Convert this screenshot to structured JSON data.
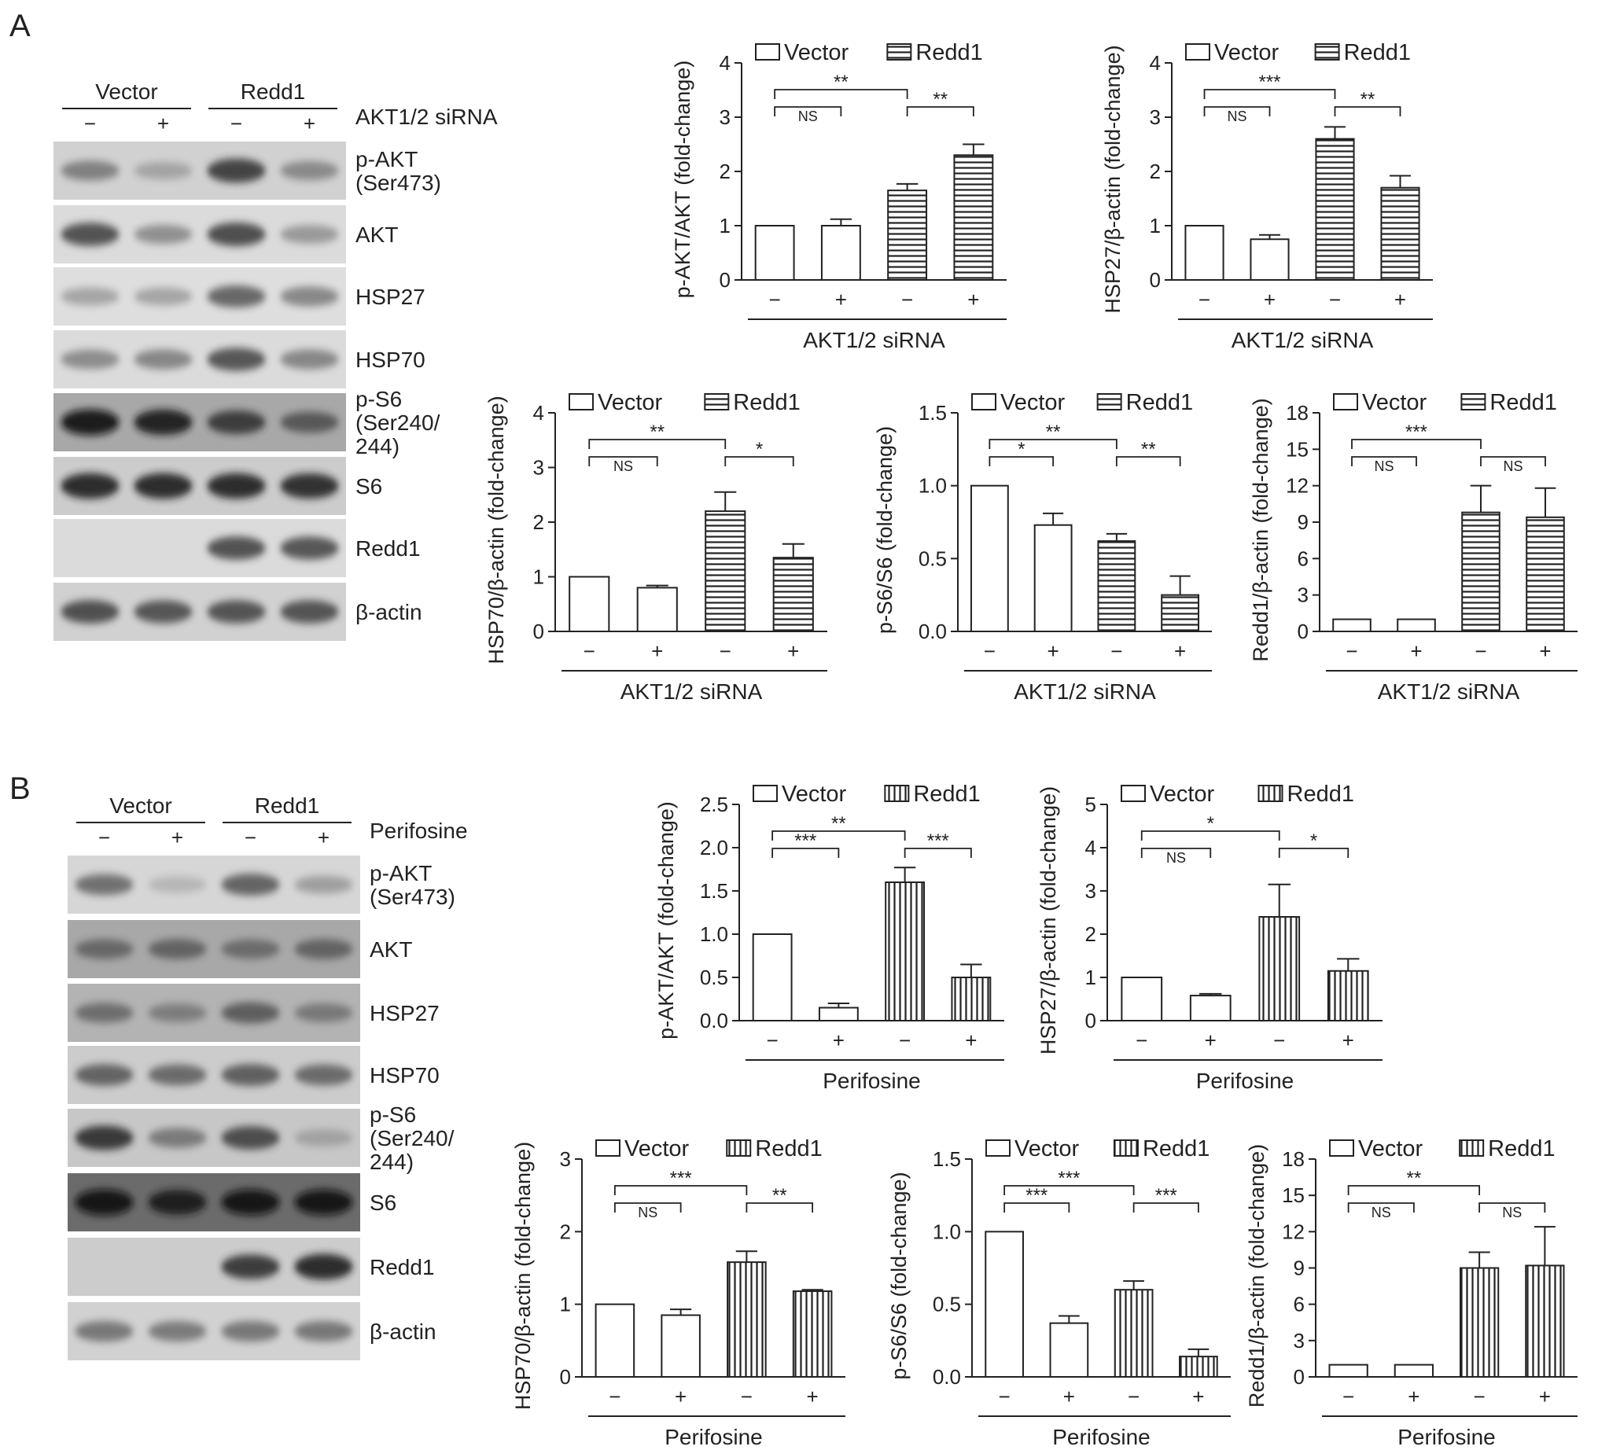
{
  "panels": [
    {
      "letter": "A",
      "blot": {
        "groups": [
          "Vector",
          "Redd1"
        ],
        "treatment": "AKT1/2 siRNA",
        "signs": [
          "−",
          "+",
          "−",
          "+"
        ],
        "rows": [
          {
            "label": [
              "p-AKT",
              "(Ser473)"
            ],
            "bg": 0.82,
            "bands": [
              0.45,
              0.25,
              0.78,
              0.4
            ]
          },
          {
            "label": [
              "AKT"
            ],
            "bg": 0.86,
            "bands": [
              0.72,
              0.4,
              0.75,
              0.35
            ]
          },
          {
            "label": [
              "HSP27"
            ],
            "bg": 0.87,
            "bands": [
              0.3,
              0.3,
              0.62,
              0.45
            ]
          },
          {
            "label": [
              "HSP70"
            ],
            "bg": 0.86,
            "bands": [
              0.42,
              0.45,
              0.7,
              0.45
            ]
          },
          {
            "label": [
              "p-S6",
              "(Ser240/",
              "244)"
            ],
            "bg": 0.66,
            "bands": [
              0.95,
              0.9,
              0.75,
              0.55
            ]
          },
          {
            "label": [
              "S6"
            ],
            "bg": 0.8,
            "bands": [
              0.92,
              0.92,
              0.9,
              0.88
            ]
          },
          {
            "label": [
              "Redd1"
            ],
            "bg": 0.86,
            "bands": [
              0.03,
              0.03,
              0.72,
              0.7
            ]
          },
          {
            "label": [
              "β-actin"
            ],
            "bg": 0.82,
            "bands": [
              0.72,
              0.68,
              0.7,
              0.7
            ]
          }
        ]
      },
      "charts": [
        {
          "ylabel": "p-AKT/AKT (fold-change)",
          "xlabel": "AKT1/2 siRNA",
          "ymax": 4,
          "ticks": [
            "0",
            "1",
            "2",
            "3",
            "4"
          ],
          "values": [
            1.0,
            1.0,
            1.65,
            2.3
          ],
          "errors": [
            0,
            0.12,
            0.12,
            0.2
          ],
          "legend": [
            "Vector",
            "Redd1"
          ],
          "signs": [
            "−",
            "+",
            "−",
            "+"
          ],
          "brackets": [
            {
              "from": 0,
              "to": 1,
              "label": "NS"
            },
            {
              "from": 0,
              "to": 2,
              "label": "**"
            },
            {
              "from": 2,
              "to": 3,
              "label": "**"
            }
          ]
        },
        {
          "ylabel": "HSP27/β-actin (fold-change)",
          "xlabel": "AKT1/2 siRNA",
          "ymax": 4,
          "ticks": [
            "0",
            "1",
            "2",
            "3",
            "4"
          ],
          "values": [
            1.0,
            0.75,
            2.6,
            1.7
          ],
          "errors": [
            0,
            0.08,
            0.22,
            0.22
          ],
          "legend": [
            "Vector",
            "Redd1"
          ],
          "signs": [
            "−",
            "+",
            "−",
            "+"
          ],
          "brackets": [
            {
              "from": 0,
              "to": 1,
              "label": "NS"
            },
            {
              "from": 0,
              "to": 2,
              "label": "***"
            },
            {
              "from": 2,
              "to": 3,
              "label": "**"
            }
          ]
        },
        {
          "ylabel": "HSP70/β-actin (fold-change)",
          "xlabel": "AKT1/2 siRNA",
          "ymax": 4,
          "ticks": [
            "0",
            "1",
            "2",
            "3",
            "4"
          ],
          "values": [
            1.0,
            0.8,
            2.2,
            1.35
          ],
          "errors": [
            0,
            0.04,
            0.35,
            0.25
          ],
          "legend": [
            "Vector",
            "Redd1"
          ],
          "signs": [
            "−",
            "+",
            "−",
            "+"
          ],
          "brackets": [
            {
              "from": 0,
              "to": 1,
              "label": "NS"
            },
            {
              "from": 0,
              "to": 2,
              "label": "**"
            },
            {
              "from": 2,
              "to": 3,
              "label": "*"
            }
          ]
        },
        {
          "ylabel": "p-S6/S6 (fold-change)",
          "xlabel": "AKT1/2 siRNA",
          "ymax": 1.5,
          "ticks": [
            "0.0",
            "0.5",
            "1.0",
            "1.5"
          ],
          "values": [
            1.0,
            0.73,
            0.62,
            0.25
          ],
          "errors": [
            0,
            0.08,
            0.05,
            0.13
          ],
          "legend": [
            "Vector",
            "Redd1"
          ],
          "signs": [
            "−",
            "+",
            "−",
            "+"
          ],
          "brackets": [
            {
              "from": 0,
              "to": 1,
              "label": "*"
            },
            {
              "from": 0,
              "to": 2,
              "label": "**"
            },
            {
              "from": 2,
              "to": 3,
              "label": "**"
            }
          ]
        },
        {
          "ylabel": "Redd1/β-actin (fold-change)",
          "xlabel": "AKT1/2 siRNA",
          "ymax": 18,
          "ticks": [
            "0",
            "3",
            "6",
            "9",
            "12",
            "15",
            "18"
          ],
          "values": [
            1.0,
            1.0,
            9.8,
            9.4
          ],
          "errors": [
            0,
            0,
            2.2,
            2.4
          ],
          "legend": [
            "Vector",
            "Redd1"
          ],
          "signs": [
            "−",
            "+",
            "−",
            "+"
          ],
          "brackets": [
            {
              "from": 0,
              "to": 1,
              "label": "NS"
            },
            {
              "from": 0,
              "to": 2,
              "label": "***"
            },
            {
              "from": 2,
              "to": 3,
              "label": "NS"
            }
          ]
        }
      ]
    },
    {
      "letter": "B",
      "blot": {
        "groups": [
          "Vector",
          "Redd1"
        ],
        "treatment": "Perifosine",
        "signs": [
          "−",
          "+",
          "−",
          "+"
        ],
        "rows": [
          {
            "label": [
              "p-AKT",
              "(Ser473)"
            ],
            "bg": 0.84,
            "bands": [
              0.55,
              0.18,
              0.62,
              0.3
            ]
          },
          {
            "label": [
              "AKT"
            ],
            "bg": 0.66,
            "bands": [
              0.45,
              0.48,
              0.42,
              0.48
            ]
          },
          {
            "label": [
              "HSP27"
            ],
            "bg": 0.7,
            "bands": [
              0.45,
              0.35,
              0.55,
              0.38
            ]
          },
          {
            "label": [
              "HSP70"
            ],
            "bg": 0.8,
            "bands": [
              0.6,
              0.55,
              0.62,
              0.55
            ]
          },
          {
            "label": [
              "p-S6",
              "(Ser240/",
              "244)"
            ],
            "bg": 0.78,
            "bands": [
              0.82,
              0.45,
              0.72,
              0.22
            ]
          },
          {
            "label": [
              "S6"
            ],
            "bg": 0.42,
            "bands": [
              0.95,
              0.85,
              0.92,
              0.9
            ]
          },
          {
            "label": [
              "Redd1"
            ],
            "bg": 0.8,
            "bands": [
              0.03,
              0.03,
              0.82,
              0.92
            ]
          },
          {
            "label": [
              "β-actin"
            ],
            "bg": 0.82,
            "bands": [
              0.5,
              0.48,
              0.5,
              0.5
            ]
          }
        ]
      },
      "charts": [
        {
          "ylabel": "p-AKT/AKT (fold-change)",
          "xlabel": "Perifosine",
          "ymax": 2.5,
          "ticks": [
            "0.0",
            "0.5",
            "1.0",
            "1.5",
            "2.0",
            "2.5"
          ],
          "values": [
            1.0,
            0.15,
            1.6,
            0.5
          ],
          "errors": [
            0,
            0.05,
            0.17,
            0.15
          ],
          "legend": [
            "Vector",
            "Redd1"
          ],
          "signs": [
            "−",
            "+",
            "−",
            "+"
          ],
          "brackets": [
            {
              "from": 0,
              "to": 1,
              "label": "***"
            },
            {
              "from": 0,
              "to": 2,
              "label": "**"
            },
            {
              "from": 2,
              "to": 3,
              "label": "***"
            }
          ]
        },
        {
          "ylabel": "HSP27/β-actin (fold-change)",
          "xlabel": "Perifosine",
          "ymax": 5,
          "ticks": [
            "0",
            "1",
            "2",
            "3",
            "4",
            "5"
          ],
          "values": [
            1.0,
            0.58,
            2.4,
            1.15
          ],
          "errors": [
            0,
            0.04,
            0.75,
            0.28
          ],
          "legend": [
            "Vector",
            "Redd1"
          ],
          "signs": [
            "−",
            "+",
            "−",
            "+"
          ],
          "brackets": [
            {
              "from": 0,
              "to": 1,
              "label": "NS"
            },
            {
              "from": 0,
              "to": 2,
              "label": "*"
            },
            {
              "from": 2,
              "to": 3,
              "label": "*"
            }
          ]
        },
        {
          "ylabel": "HSP70/β-actin (fold-change)",
          "xlabel": "Perifosine",
          "ymax": 3,
          "ticks": [
            "0",
            "1",
            "2",
            "3"
          ],
          "values": [
            1.0,
            0.85,
            1.58,
            1.18
          ],
          "errors": [
            0,
            0.08,
            0.15,
            0.02
          ],
          "legend": [
            "Vector",
            "Redd1"
          ],
          "signs": [
            "−",
            "+",
            "−",
            "+"
          ],
          "brackets": [
            {
              "from": 0,
              "to": 1,
              "label": "NS"
            },
            {
              "from": 0,
              "to": 2,
              "label": "***"
            },
            {
              "from": 2,
              "to": 3,
              "label": "**"
            }
          ]
        },
        {
          "ylabel": "p-S6/S6 (fold-change)",
          "xlabel": "Perifosine",
          "ymax": 1.5,
          "ticks": [
            "0.0",
            "0.5",
            "1.0",
            "1.5"
          ],
          "values": [
            1.0,
            0.37,
            0.6,
            0.14
          ],
          "errors": [
            0,
            0.05,
            0.06,
            0.05
          ],
          "legend": [
            "Vector",
            "Redd1"
          ],
          "signs": [
            "−",
            "+",
            "−",
            "+"
          ],
          "brackets": [
            {
              "from": 0,
              "to": 1,
              "label": "***"
            },
            {
              "from": 0,
              "to": 2,
              "label": "***"
            },
            {
              "from": 2,
              "to": 3,
              "label": "***"
            }
          ]
        },
        {
          "ylabel": "Redd1/β-actin (fold-change)",
          "xlabel": "Perifosine",
          "ymax": 18,
          "ticks": [
            "0",
            "3",
            "6",
            "9",
            "12",
            "15",
            "18"
          ],
          "values": [
            1.0,
            1.0,
            9.0,
            9.2
          ],
          "errors": [
            0,
            0,
            1.3,
            3.2
          ],
          "legend": [
            "Vector",
            "Redd1"
          ],
          "signs": [
            "−",
            "+",
            "−",
            "+"
          ],
          "brackets": [
            {
              "from": 0,
              "to": 1,
              "label": "NS"
            },
            {
              "from": 0,
              "to": 2,
              "label": "**"
            },
            {
              "from": 2,
              "to": 3,
              "label": "NS"
            }
          ]
        }
      ]
    }
  ]
}
